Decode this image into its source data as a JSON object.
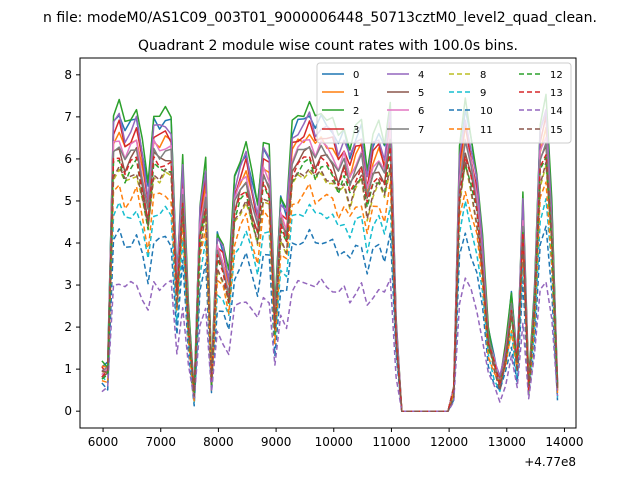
{
  "chart_data": {
    "type": "line",
    "suptitle": "n file: modeM0/AS1C09_003T01_9000006448_50713cztM0_level2_quad_clean.",
    "title": "Quadrant 2 module wise count rates with 100.0s bins.",
    "xlabel": "",
    "ylabel": "",
    "x_offset_label": "+4.77e8",
    "xlim": [
      5600,
      14200
    ],
    "ylim": [
      -0.4,
      8.4
    ],
    "xticks": [
      6000,
      7000,
      8000,
      9000,
      10000,
      11000,
      12000,
      13000,
      14000
    ],
    "yticks": [
      0,
      1,
      2,
      3,
      4,
      5,
      6,
      7,
      8
    ],
    "grid": false,
    "legend_position": "top-right",
    "legend_columns": 4,
    "x": [
      5980,
      6080,
      6180,
      6280,
      6380,
      6480,
      6580,
      6680,
      6780,
      6880,
      6980,
      7080,
      7180,
      7280,
      7380,
      7480,
      7580,
      7680,
      7780,
      7880,
      7980,
      8080,
      8180,
      8280,
      8380,
      8480,
      8580,
      8680,
      8780,
      8880,
      8980,
      9080,
      9180,
      9280,
      9380,
      9480,
      9580,
      9680,
      9780,
      9880,
      9980,
      10080,
      10180,
      10280,
      10380,
      10480,
      10580,
      10680,
      10780,
      10880,
      10980,
      11080,
      11180,
      11280,
      11380,
      11480,
      11580,
      11680,
      11780,
      11880,
      11980,
      12080,
      12180,
      12280,
      12380,
      12480,
      12580,
      12680,
      12780,
      12880,
      12980,
      13080,
      13180,
      13280,
      13380,
      13480,
      13580,
      13680,
      13780,
      13880
    ],
    "base_profile": [
      1.0,
      1.0,
      6.6,
      6.8,
      6.3,
      6.5,
      6.7,
      5.9,
      5.0,
      6.6,
      6.5,
      6.6,
      6.5,
      3.0,
      5.6,
      2.3,
      0.4,
      4.6,
      5.5,
      0.8,
      4.0,
      3.7,
      3.0,
      5.2,
      5.6,
      5.9,
      5.2,
      4.6,
      6.0,
      5.8,
      2.2,
      4.8,
      4.5,
      6.3,
      6.5,
      6.6,
      6.8,
      6.4,
      6.6,
      6.5,
      6.4,
      6.0,
      6.3,
      5.8,
      6.2,
      6.4,
      5.4,
      6.1,
      6.3,
      5.9,
      6.9,
      2.0,
      0.0,
      0.0,
      0.0,
      0.0,
      0.0,
      0.0,
      0.0,
      0.0,
      0.0,
      0.5,
      5.8,
      6.8,
      6.1,
      5.3,
      3.8,
      1.8,
      1.2,
      0.7,
      1.4,
      2.6,
      1.2,
      4.8,
      0.6,
      2.7,
      6.4,
      6.9,
      4.6,
      0.6
    ],
    "series": [
      {
        "name": "0",
        "color": "#1f77b4",
        "style": "solid",
        "scale": 1.05
      },
      {
        "name": "1",
        "color": "#ff7f0e",
        "style": "solid",
        "scale": 0.98
      },
      {
        "name": "2",
        "color": "#2ca02c",
        "style": "solid",
        "scale": 1.08
      },
      {
        "name": "3",
        "color": "#d62728",
        "style": "solid",
        "scale": 1.0
      },
      {
        "name": "4",
        "color": "#9467bd",
        "style": "solid",
        "scale": 1.03
      },
      {
        "name": "5",
        "color": "#8c564b",
        "style": "solid",
        "scale": 0.92
      },
      {
        "name": "6",
        "color": "#e377c2",
        "style": "solid",
        "scale": 0.96
      },
      {
        "name": "7",
        "color": "#7f7f7f",
        "style": "solid",
        "scale": 0.94
      },
      {
        "name": "8",
        "color": "#bcbd22",
        "style": "dashed",
        "scale": 0.85
      },
      {
        "name": "9",
        "color": "#17becf",
        "style": "dashed",
        "scale": 0.72
      },
      {
        "name": "10",
        "color": "#1f77b4",
        "style": "dashed",
        "scale": 0.62
      },
      {
        "name": "11",
        "color": "#ff7f0e",
        "style": "dashed",
        "scale": 0.78
      },
      {
        "name": "12",
        "color": "#2ca02c",
        "style": "dashed",
        "scale": 0.88
      },
      {
        "name": "13",
        "color": "#d62728",
        "style": "dashed",
        "scale": 0.9
      },
      {
        "name": "14",
        "color": "#9467bd",
        "style": "dashed",
        "scale": 0.46
      },
      {
        "name": "15",
        "color": "#8c564b",
        "style": "dashed",
        "scale": 0.86
      }
    ]
  }
}
